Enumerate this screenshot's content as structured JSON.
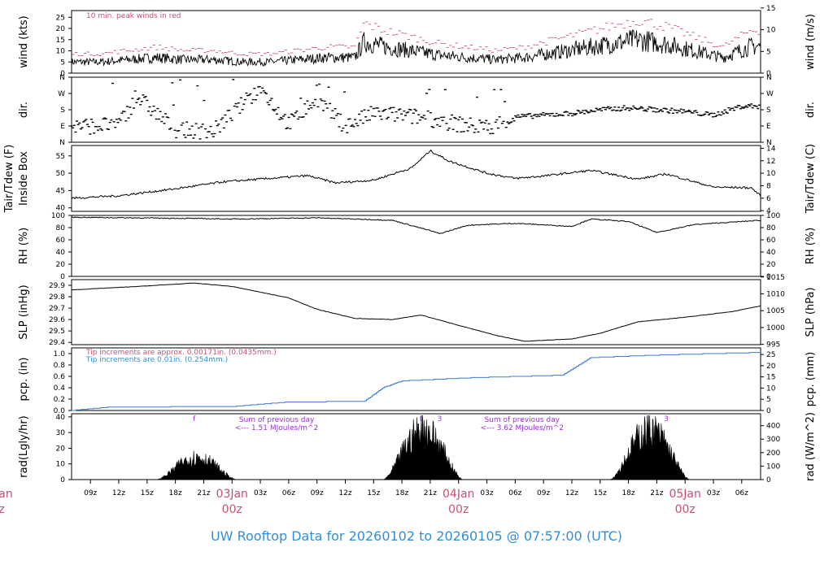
{
  "title": "UW Rooftop Data for 20260102  to  20260105 @ 07:57:00  (UTC)",
  "colors": {
    "trace": "#000000",
    "peak": "#c8506e",
    "precip": "#3a7bd5",
    "note_red": "#c8506e",
    "note_blue": "#2f8fd6",
    "purple": "#9b30d8",
    "title": "#2f8fd6"
  },
  "time_axis": {
    "start": "2026-01-02 07:00 UTC",
    "end": "2026-01-05 08:00 UTC",
    "ticks": [
      "09z",
      "12z",
      "15z",
      "18z",
      "21z",
      "03Jan",
      "03z",
      "06z",
      "09z",
      "12z",
      "15z",
      "18z",
      "21z",
      "04Jan",
      "03z",
      "06z",
      "09z",
      "12z",
      "15z",
      "18z",
      "21z",
      "05Jan",
      "03z",
      "06z"
    ],
    "day_labels": [
      {
        "day": "03Jan",
        "hour": "00z"
      },
      {
        "day": "04Jan",
        "hour": "00z"
      },
      {
        "day": "05Jan",
        "hour": "00z"
      }
    ],
    "clipped_left_label": {
      "day": "an",
      "hour": "z"
    }
  },
  "chart_data": [
    {
      "panel": "wind",
      "type": "line",
      "ylabel_left": "wind (kts)",
      "ylabel_right": "wind (m/s)",
      "ylim": [
        0,
        28
      ],
      "yticks_left": [
        "0",
        "5",
        "10",
        "15",
        "20",
        "25"
      ],
      "yticks_right": [
        "0",
        "5",
        "10",
        "15"
      ],
      "annotation": "10 min. peak winds in red",
      "series": [
        {
          "name": "10 min. peak winds",
          "color": "#c8506e"
        }
      ],
      "hourly_mean": [
        {
          "t": "2026-01-02 07:00",
          "v": 5
        },
        {
          "t": "2026-01-02 10:00",
          "v": 5
        },
        {
          "t": "2026-01-02 13:00",
          "v": 6
        },
        {
          "t": "2026-01-02 16:00",
          "v": 7
        },
        {
          "t": "2026-01-02 19:00",
          "v": 6
        },
        {
          "t": "2026-01-02 22:00",
          "v": 6
        },
        {
          "t": "2026-01-03 01:00",
          "v": 5
        },
        {
          "t": "2026-01-03 04:00",
          "v": 5
        },
        {
          "t": "2026-01-03 07:00",
          "v": 6
        },
        {
          "t": "2026-01-03 10:00",
          "v": 7
        },
        {
          "t": "2026-01-03 13:00",
          "v": 7
        },
        {
          "t": "2026-01-03 14:00",
          "v": 14
        },
        {
          "t": "2026-01-03 16:00",
          "v": 12
        },
        {
          "t": "2026-01-03 19:00",
          "v": 10
        },
        {
          "t": "2026-01-03 22:00",
          "v": 8
        },
        {
          "t": "2026-01-04 01:00",
          "v": 7
        },
        {
          "t": "2026-01-04 04:00",
          "v": 6
        },
        {
          "t": "2026-01-04 07:00",
          "v": 7
        },
        {
          "t": "2026-01-04 10:00",
          "v": 9
        },
        {
          "t": "2026-01-04 13:00",
          "v": 11
        },
        {
          "t": "2026-01-04 16:00",
          "v": 13
        },
        {
          "t": "2026-01-04 19:00",
          "v": 15
        },
        {
          "t": "2026-01-04 22:00",
          "v": 13
        },
        {
          "t": "2026-01-05 01:00",
          "v": 10
        },
        {
          "t": "2026-01-05 04:00",
          "v": 7
        },
        {
          "t": "2026-01-05 07:00",
          "v": 12
        }
      ]
    },
    {
      "panel": "dir",
      "type": "scatter",
      "ylabel_left": "dir.",
      "ylabel_right": "dir.",
      "yticks": [
        "N",
        "E",
        "S",
        "W",
        "N"
      ],
      "ylim": [
        0,
        360
      ],
      "points": [
        {
          "t": "2026-01-02 09:00",
          "deg": 90
        },
        {
          "t": "2026-01-02 12:00",
          "deg": 100
        },
        {
          "t": "2026-01-02 14:00",
          "deg": 250
        },
        {
          "t": "2026-01-02 18:00",
          "deg": 70
        },
        {
          "t": "2026-01-02 22:00",
          "deg": 60
        },
        {
          "t": "2026-01-03 03:00",
          "deg": 300
        },
        {
          "t": "2026-01-03 06:00",
          "deg": 100
        },
        {
          "t": "2026-01-03 09:00",
          "deg": 240
        },
        {
          "t": "2026-01-03 12:00",
          "deg": 90
        },
        {
          "t": "2026-01-03 15:00",
          "deg": 160
        },
        {
          "t": "2026-01-03 18:00",
          "deg": 150
        },
        {
          "t": "2026-01-03 21:00",
          "deg": 130
        },
        {
          "t": "2026-01-04 00:00",
          "deg": 100
        },
        {
          "t": "2026-01-04 03:00",
          "deg": 80
        },
        {
          "t": "2026-01-04 06:00",
          "deg": 140
        },
        {
          "t": "2026-01-04 09:00",
          "deg": 150
        },
        {
          "t": "2026-01-04 12:00",
          "deg": 160
        },
        {
          "t": "2026-01-04 15:00",
          "deg": 180
        },
        {
          "t": "2026-01-04 18:00",
          "deg": 190
        },
        {
          "t": "2026-01-04 21:00",
          "deg": 180
        },
        {
          "t": "2026-01-05 00:00",
          "deg": 170
        },
        {
          "t": "2026-01-05 03:00",
          "deg": 150
        },
        {
          "t": "2026-01-05 06:00",
          "deg": 200
        }
      ]
    },
    {
      "panel": "temp",
      "type": "line",
      "ylabel_left": "Inside Box",
      "ylabel_left2": "Tair/Tdew (F)",
      "ylabel_right": "Tair/Tdew (C)",
      "ylim": [
        39,
        58
      ],
      "yticks_left": [
        "40",
        "45",
        "50",
        "55"
      ],
      "yticks_right": [
        "4",
        "6",
        "8",
        "10",
        "12",
        "14"
      ],
      "values": [
        {
          "t": "2026-01-02 07:00",
          "v": 42.8
        },
        {
          "t": "2026-01-02 12:00",
          "v": 43.5
        },
        {
          "t": "2026-01-02 18:00",
          "v": 45.5
        },
        {
          "t": "2026-01-02 23:00",
          "v": 47.5
        },
        {
          "t": "2026-01-03 04:00",
          "v": 48.5
        },
        {
          "t": "2026-01-03 08:00",
          "v": 49.3
        },
        {
          "t": "2026-01-03 11:00",
          "v": 47.2
        },
        {
          "t": "2026-01-03 15:00",
          "v": 48.0
        },
        {
          "t": "2026-01-03 19:00",
          "v": 51.5
        },
        {
          "t": "2026-01-03 21:00",
          "v": 56.5
        },
        {
          "t": "2026-01-03 23:00",
          "v": 53.5
        },
        {
          "t": "2026-01-04 03:00",
          "v": 50.0
        },
        {
          "t": "2026-01-04 06:00",
          "v": 48.5
        },
        {
          "t": "2026-01-04 09:00",
          "v": 49.2
        },
        {
          "t": "2026-01-04 14:00",
          "v": 50.8
        },
        {
          "t": "2026-01-04 19:00",
          "v": 48.3
        },
        {
          "t": "2026-01-04 22:00",
          "v": 49.8
        },
        {
          "t": "2026-01-05 03:00",
          "v": 46.0
        },
        {
          "t": "2026-01-05 07:00",
          "v": 45.8
        },
        {
          "t": "2026-01-05 08:00",
          "v": 43.5
        }
      ]
    },
    {
      "panel": "rh",
      "type": "line",
      "ylabel_left": "RH (%)",
      "ylabel_right": "RH (%)",
      "ylim": [
        0,
        100
      ],
      "yticks": [
        "0",
        "20",
        "40",
        "60",
        "80",
        "100"
      ],
      "values": [
        {
          "t": "2026-01-02 07:00",
          "v": 97
        },
        {
          "t": "2026-01-02 20:00",
          "v": 95
        },
        {
          "t": "2026-01-03 00:00",
          "v": 94
        },
        {
          "t": "2026-01-03 09:00",
          "v": 96
        },
        {
          "t": "2026-01-03 17:00",
          "v": 92
        },
        {
          "t": "2026-01-03 21:00",
          "v": 75
        },
        {
          "t": "2026-01-03 22:00",
          "v": 70
        },
        {
          "t": "2026-01-04 01:00",
          "v": 84
        },
        {
          "t": "2026-01-04 06:00",
          "v": 87
        },
        {
          "t": "2026-01-04 12:00",
          "v": 82
        },
        {
          "t": "2026-01-04 14:00",
          "v": 94
        },
        {
          "t": "2026-01-04 18:00",
          "v": 90
        },
        {
          "t": "2026-01-04 21:00",
          "v": 72
        },
        {
          "t": "2026-01-05 01:00",
          "v": 85
        },
        {
          "t": "2026-01-05 08:00",
          "v": 92
        }
      ]
    },
    {
      "panel": "slp",
      "type": "line",
      "ylabel_left": "SLP (inHg)",
      "ylabel_right": "SLP (hPa)",
      "ylim": [
        29.38,
        29.95
      ],
      "yticks_left": [
        "29.4",
        "29.5",
        "29.6",
        "29.7",
        "29.8",
        "29.9"
      ],
      "yticks_right": [
        "995",
        "1000",
        "1005",
        "1010",
        "1015"
      ],
      "values": [
        {
          "t": "2026-01-02 07:00",
          "v": 29.86
        },
        {
          "t": "2026-01-02 14:00",
          "v": 29.89
        },
        {
          "t": "2026-01-02 20:00",
          "v": 29.92
        },
        {
          "t": "2026-01-03 00:00",
          "v": 29.89
        },
        {
          "t": "2026-01-03 06:00",
          "v": 29.79
        },
        {
          "t": "2026-01-03 09:00",
          "v": 29.69
        },
        {
          "t": "2026-01-03 13:00",
          "v": 29.61
        },
        {
          "t": "2026-01-03 17:00",
          "v": 29.6
        },
        {
          "t": "2026-01-03 20:00",
          "v": 29.64
        },
        {
          "t": "2026-01-04 00:00",
          "v": 29.55
        },
        {
          "t": "2026-01-04 04:00",
          "v": 29.46
        },
        {
          "t": "2026-01-04 07:00",
          "v": 29.41
        },
        {
          "t": "2026-01-04 12:00",
          "v": 29.43
        },
        {
          "t": "2026-01-04 15:00",
          "v": 29.48
        },
        {
          "t": "2026-01-04 19:00",
          "v": 29.58
        },
        {
          "t": "2026-01-05 00:00",
          "v": 29.62
        },
        {
          "t": "2026-01-05 05:00",
          "v": 29.67
        },
        {
          "t": "2026-01-05 08:00",
          "v": 29.72
        }
      ]
    },
    {
      "panel": "pcp",
      "type": "line",
      "ylabel_left": "pcp. (in)",
      "ylabel_right": "pcp. (mm)",
      "ylim": [
        0,
        1.1
      ],
      "yticks_left": [
        "0.0",
        "0.2",
        "0.4",
        "0.6",
        "0.8",
        "1.0"
      ],
      "yticks_right": [
        "0",
        "5",
        "10",
        "15",
        "20",
        "25"
      ],
      "notes": [
        "Tip increments are approx. 0.00171in. (0.0435mm.)",
        "Tip increments are 0.01in. (0.254mm.)"
      ],
      "values": [
        {
          "t": "2026-01-02 07:00",
          "v": 0.0
        },
        {
          "t": "2026-01-02 11:00",
          "v": 0.06
        },
        {
          "t": "2026-01-03 00:00",
          "v": 0.07
        },
        {
          "t": "2026-01-03 06:00",
          "v": 0.15
        },
        {
          "t": "2026-01-03 14:00",
          "v": 0.16
        },
        {
          "t": "2026-01-03 16:00",
          "v": 0.4
        },
        {
          "t": "2026-01-03 18:00",
          "v": 0.52
        },
        {
          "t": "2026-01-04 02:00",
          "v": 0.58
        },
        {
          "t": "2026-01-04 11:00",
          "v": 0.62
        },
        {
          "t": "2026-01-04 14:00",
          "v": 0.93
        },
        {
          "t": "2026-01-04 22:00",
          "v": 0.98
        },
        {
          "t": "2026-01-05 08:00",
          "v": 1.02
        }
      ]
    },
    {
      "panel": "rad",
      "type": "area",
      "ylabel_left": "rad(Lgly/hr)",
      "ylabel_right": "rad (W/m^2)",
      "ylim": [
        0,
        42
      ],
      "yticks_left": [
        "0",
        "10",
        "20",
        "30",
        "40"
      ],
      "yticks_right": [
        "0",
        "100",
        "200",
        "300",
        "400"
      ],
      "annotations": [
        {
          "text": "Sum of previous day",
          "value": "<--- 1.51 MJoules/m^2"
        },
        {
          "text": "Sum of previous day",
          "value": "<--- 3.62 MJoules/m^2"
        }
      ],
      "markers": [
        "f",
        "f",
        "3",
        "f",
        "3"
      ],
      "days": [
        {
          "start": "2026-01-02 16:00",
          "end": "2026-01-03 00:30",
          "peak": 18
        },
        {
          "start": "2026-01-03 16:00",
          "end": "2026-01-04 00:30",
          "peak": 40
        },
        {
          "start": "2026-01-04 16:00",
          "end": "2026-01-05 00:30",
          "peak": 40
        }
      ]
    }
  ]
}
